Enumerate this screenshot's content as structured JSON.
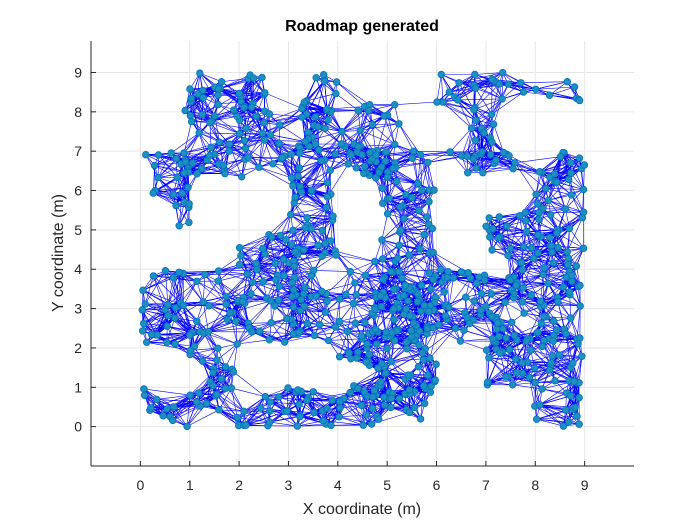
{
  "chart_data": {
    "type": "scatter",
    "title": "Roadmap generated",
    "xlabel": "X coordinate (m)",
    "ylabel": "Y coordinate (m)",
    "xlim": [
      -1,
      10
    ],
    "ylim": [
      -1,
      9.8
    ],
    "xticks": [
      0,
      1,
      2,
      3,
      4,
      5,
      6,
      7,
      8,
      9
    ],
    "yticks": [
      0,
      1,
      2,
      3,
      4,
      5,
      6,
      7,
      8,
      9
    ],
    "grid": true,
    "colors": {
      "edge": "#0000ff",
      "node_fill": "#1f8fbf",
      "node_stroke": "#0072bd",
      "grid": "#e6e6e6",
      "axis": "#262626"
    },
    "free_regions": [
      [
        1.0,
        8.2,
        3.0,
        9.0
      ],
      [
        3.0,
        7.9,
        4.0,
        9.0
      ],
      [
        0.9,
        6.3,
        5.3,
        8.2
      ],
      [
        6.0,
        8.2,
        9.0,
        9.0
      ],
      [
        6.4,
        7.0,
        7.2,
        8.2
      ],
      [
        6.2,
        6.4,
        9.0,
        7.0
      ],
      [
        8.0,
        5.4,
        9.0,
        7.0
      ],
      [
        0.0,
        5.8,
        1.0,
        7.0
      ],
      [
        0.6,
        5.0,
        1.0,
        5.8
      ],
      [
        3.0,
        4.2,
        4.0,
        6.4
      ],
      [
        2.0,
        4.0,
        3.2,
        4.9
      ],
      [
        4.6,
        2.2,
        6.0,
        7.0
      ],
      [
        7.0,
        4.0,
        9.0,
        5.5
      ],
      [
        0.0,
        2.1,
        3.1,
        4.0
      ],
      [
        1.0,
        1.0,
        2.0,
        2.5
      ],
      [
        3.0,
        2.1,
        9.0,
        4.0
      ],
      [
        4.0,
        0.7,
        6.0,
        2.5
      ],
      [
        7.0,
        1.0,
        9.0,
        2.5
      ],
      [
        7.9,
        0.0,
        9.0,
        1.0
      ],
      [
        0.0,
        0.0,
        6.0,
        1.0
      ]
    ],
    "node_count": 900,
    "edge_radius": 0.95,
    "max_edges_per_node": 10
  }
}
